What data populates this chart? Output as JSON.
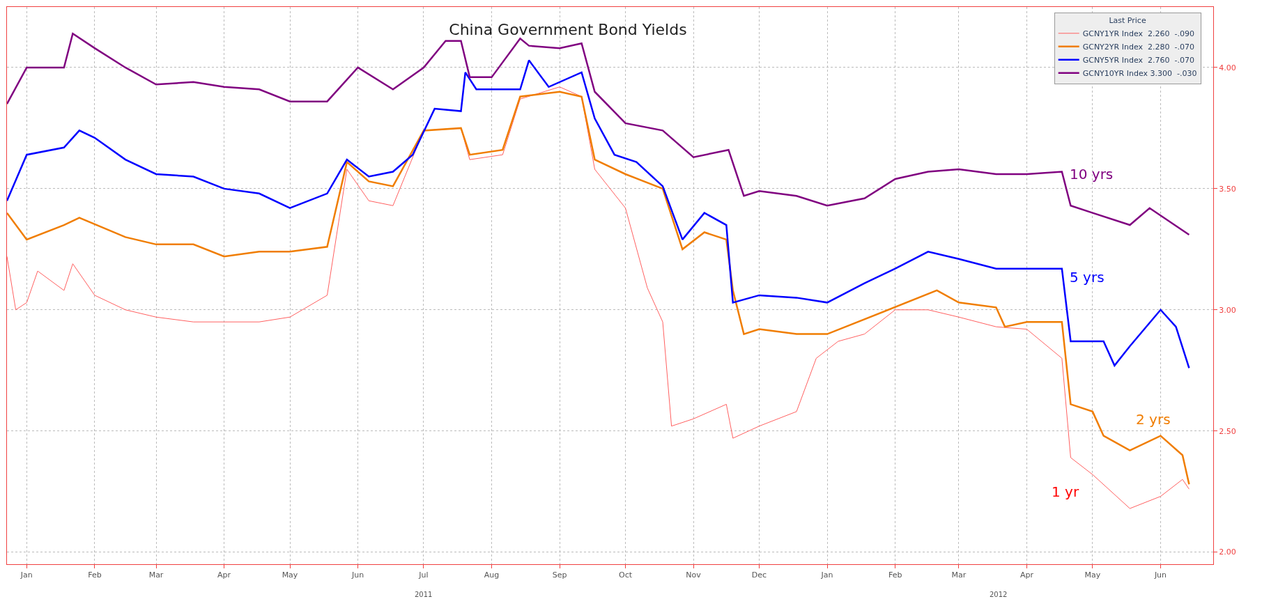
{
  "chart_data": {
    "type": "line",
    "title": "China Government Bond Yields",
    "legend_title": "Last Price",
    "legend": "top right",
    "grid": true,
    "line_style": "solid",
    "marker": "none",
    "xlim": [
      "2011-01-06",
      "2012-07-09"
    ],
    "xticks": [
      {
        "value": "2011-01-15",
        "label": "Jan"
      },
      {
        "value": "2011-02-15",
        "label": "Feb"
      },
      {
        "value": "2011-03-15",
        "label": "Mar"
      },
      {
        "value": "2011-04-15",
        "label": "Apr"
      },
      {
        "value": "2011-05-15",
        "label": "May"
      },
      {
        "value": "2011-06-15",
        "label": "Jun"
      },
      {
        "value": "2011-07-15",
        "label": "Jul"
      },
      {
        "value": "2011-08-15",
        "label": "Aug"
      },
      {
        "value": "2011-09-15",
        "label": "Sep"
      },
      {
        "value": "2011-10-15",
        "label": "Oct"
      },
      {
        "value": "2011-11-15",
        "label": "Nov"
      },
      {
        "value": "2011-12-15",
        "label": "Dec"
      },
      {
        "value": "2012-01-15",
        "label": "Jan"
      },
      {
        "value": "2012-02-15",
        "label": "Feb"
      },
      {
        "value": "2012-03-15",
        "label": "Mar"
      },
      {
        "value": "2012-04-15",
        "label": "Apr"
      },
      {
        "value": "2012-05-15",
        "label": "May"
      },
      {
        "value": "2012-06-15",
        "label": "Jun"
      }
    ],
    "ylim": [
      1.95,
      4.25
    ],
    "yticks": [
      {
        "value": 2,
        "label": "2.00"
      },
      {
        "value": 2.5,
        "label": "2.50"
      },
      {
        "value": 3,
        "label": "3.00"
      },
      {
        "value": 3.5,
        "label": "3.50"
      },
      {
        "value": 4,
        "label": "4.00"
      }
    ],
    "annotations": [
      "10 yrs",
      "5 yrs",
      "2 yrs",
      "1 yr",
      "2011",
      "2012"
    ],
    "series": [
      {
        "name": "GCNY1YR Index  2.260  -.090",
        "color": "#ff6060",
        "x": [
          "2011-01-06",
          "2011-01-10",
          "2011-01-15",
          "2011-01-20",
          "2011-02-01",
          "2011-02-05",
          "2011-02-15",
          "2011-03-01",
          "2011-03-15",
          "2011-04-01",
          "2011-04-15",
          "2011-05-01",
          "2011-05-15",
          "2011-06-01",
          "2011-06-10",
          "2011-06-20",
          "2011-07-01",
          "2011-07-15",
          "2011-08-01",
          "2011-08-05",
          "2011-08-20",
          "2011-08-28",
          "2011-09-15",
          "2011-09-25",
          "2011-10-01",
          "2011-10-15",
          "2011-10-25",
          "2011-11-01",
          "2011-11-05",
          "2011-11-15",
          "2011-11-30",
          "2011-12-03",
          "2011-12-15",
          "2012-01-01",
          "2012-01-10",
          "2012-01-20",
          "2012-02-01",
          "2012-02-15",
          "2012-03-01",
          "2012-03-15",
          "2012-04-01",
          "2012-04-15",
          "2012-05-01",
          "2012-05-05",
          "2012-05-15",
          "2012-06-01",
          "2012-06-15",
          "2012-06-25",
          "2012-06-28"
        ],
        "values": [
          3.22,
          3.0,
          3.03,
          3.16,
          3.08,
          3.19,
          3.06,
          3.0,
          2.97,
          2.95,
          2.95,
          2.95,
          2.97,
          3.06,
          3.58,
          3.45,
          3.43,
          3.74,
          3.75,
          3.62,
          3.64,
          3.87,
          3.92,
          3.88,
          3.58,
          3.42,
          3.09,
          2.95,
          2.52,
          2.55,
          2.61,
          2.47,
          2.52,
          2.58,
          2.8,
          2.87,
          2.9,
          3.0,
          3.0,
          2.97,
          2.93,
          2.92,
          2.8,
          2.39,
          2.32,
          2.18,
          2.23,
          2.3,
          2.26
        ]
      },
      {
        "name": "GCNY2YR Index  2.280  -.070",
        "color": "#f07d00",
        "x": [
          "2011-01-06",
          "2011-01-15",
          "2011-02-01",
          "2011-02-08",
          "2011-03-01",
          "2011-03-15",
          "2011-04-01",
          "2011-04-15",
          "2011-05-01",
          "2011-05-15",
          "2011-06-01",
          "2011-06-10",
          "2011-06-20",
          "2011-07-01",
          "2011-07-15",
          "2011-08-01",
          "2011-08-05",
          "2011-08-20",
          "2011-08-28",
          "2011-09-15",
          "2011-09-25",
          "2011-10-01",
          "2011-10-15",
          "2011-11-01",
          "2011-11-10",
          "2011-11-20",
          "2011-11-30",
          "2011-12-03",
          "2011-12-08",
          "2011-12-15",
          "2012-01-01",
          "2012-01-15",
          "2012-03-05",
          "2012-03-15",
          "2012-04-01",
          "2012-04-05",
          "2012-04-15",
          "2012-05-01",
          "2012-05-05",
          "2012-05-15",
          "2012-05-20",
          "2012-06-01",
          "2012-06-15",
          "2012-06-25",
          "2012-06-28"
        ],
        "values": [
          3.4,
          3.29,
          3.35,
          3.38,
          3.3,
          3.27,
          3.27,
          3.22,
          3.24,
          3.24,
          3.26,
          3.61,
          3.53,
          3.51,
          3.74,
          3.75,
          3.64,
          3.66,
          3.88,
          3.9,
          3.88,
          3.62,
          3.56,
          3.5,
          3.25,
          3.32,
          3.29,
          3.08,
          2.9,
          2.92,
          2.9,
          2.9,
          3.08,
          3.03,
          3.01,
          2.93,
          2.95,
          2.95,
          2.61,
          2.58,
          2.48,
          2.42,
          2.48,
          2.4,
          2.28
        ]
      },
      {
        "name": "GCNY5YR Index  2.760  -.070",
        "color": "#0000ff",
        "x": [
          "2011-01-06",
          "2011-01-15",
          "2011-02-01",
          "2011-02-08",
          "2011-02-15",
          "2011-03-01",
          "2011-03-15",
          "2011-04-01",
          "2011-04-15",
          "2011-05-01",
          "2011-05-15",
          "2011-06-01",
          "2011-06-10",
          "2011-06-20",
          "2011-07-01",
          "2011-07-10",
          "2011-07-20",
          "2011-08-01",
          "2011-08-03",
          "2011-08-08",
          "2011-08-28",
          "2011-09-01",
          "2011-09-10",
          "2011-09-25",
          "2011-10-01",
          "2011-10-10",
          "2011-10-20",
          "2011-11-01",
          "2011-11-10",
          "2011-11-20",
          "2011-11-30",
          "2011-12-03",
          "2011-12-15",
          "2012-01-01",
          "2012-01-15",
          "2012-02-01",
          "2012-02-15",
          "2012-03-01",
          "2012-03-15",
          "2012-04-01",
          "2012-04-15",
          "2012-05-01",
          "2012-05-05",
          "2012-05-20",
          "2012-05-25",
          "2012-06-01",
          "2012-06-15",
          "2012-06-22",
          "2012-06-28"
        ],
        "values": [
          3.45,
          3.64,
          3.67,
          3.74,
          3.71,
          3.62,
          3.56,
          3.55,
          3.5,
          3.48,
          3.42,
          3.48,
          3.62,
          3.55,
          3.57,
          3.64,
          3.83,
          3.82,
          3.98,
          3.91,
          3.91,
          4.03,
          3.92,
          3.98,
          3.79,
          3.64,
          3.61,
          3.51,
          3.29,
          3.4,
          3.35,
          3.03,
          3.06,
          3.05,
          3.03,
          3.11,
          3.17,
          3.24,
          3.21,
          3.17,
          3.17,
          3.17,
          2.87,
          2.87,
          2.77,
          2.85,
          3.0,
          2.93,
          2.76
        ]
      },
      {
        "name": "GCNY10YR Index 3.300  -.030",
        "color": "#800080",
        "x": [
          "2011-01-06",
          "2011-01-15",
          "2011-02-01",
          "2011-02-05",
          "2011-02-15",
          "2011-03-01",
          "2011-03-15",
          "2011-04-01",
          "2011-04-15",
          "2011-05-01",
          "2011-05-15",
          "2011-06-01",
          "2011-06-15",
          "2011-07-01",
          "2011-07-15",
          "2011-07-25",
          "2011-08-01",
          "2011-08-05",
          "2011-08-15",
          "2011-08-28",
          "2011-09-01",
          "2011-09-15",
          "2011-09-25",
          "2011-10-01",
          "2011-10-15",
          "2011-11-01",
          "2011-11-15",
          "2011-12-01",
          "2011-12-08",
          "2011-12-15",
          "2012-01-01",
          "2012-01-15",
          "2012-02-01",
          "2012-02-15",
          "2012-03-01",
          "2012-03-15",
          "2012-04-01",
          "2012-04-15",
          "2012-05-01",
          "2012-05-05",
          "2012-05-15",
          "2012-06-01",
          "2012-06-10",
          "2012-06-28"
        ],
        "values": [
          3.85,
          4.0,
          4.0,
          4.14,
          4.08,
          4.0,
          3.93,
          3.94,
          3.92,
          3.91,
          3.86,
          3.86,
          4.0,
          3.91,
          4.0,
          4.11,
          4.11,
          3.96,
          3.96,
          4.12,
          4.09,
          4.08,
          4.1,
          3.9,
          3.77,
          3.74,
          3.63,
          3.66,
          3.47,
          3.49,
          3.47,
          3.43,
          3.46,
          3.54,
          3.57,
          3.58,
          3.56,
          3.56,
          3.57,
          3.43,
          3.4,
          3.35,
          3.42,
          3.31
        ]
      }
    ]
  }
}
